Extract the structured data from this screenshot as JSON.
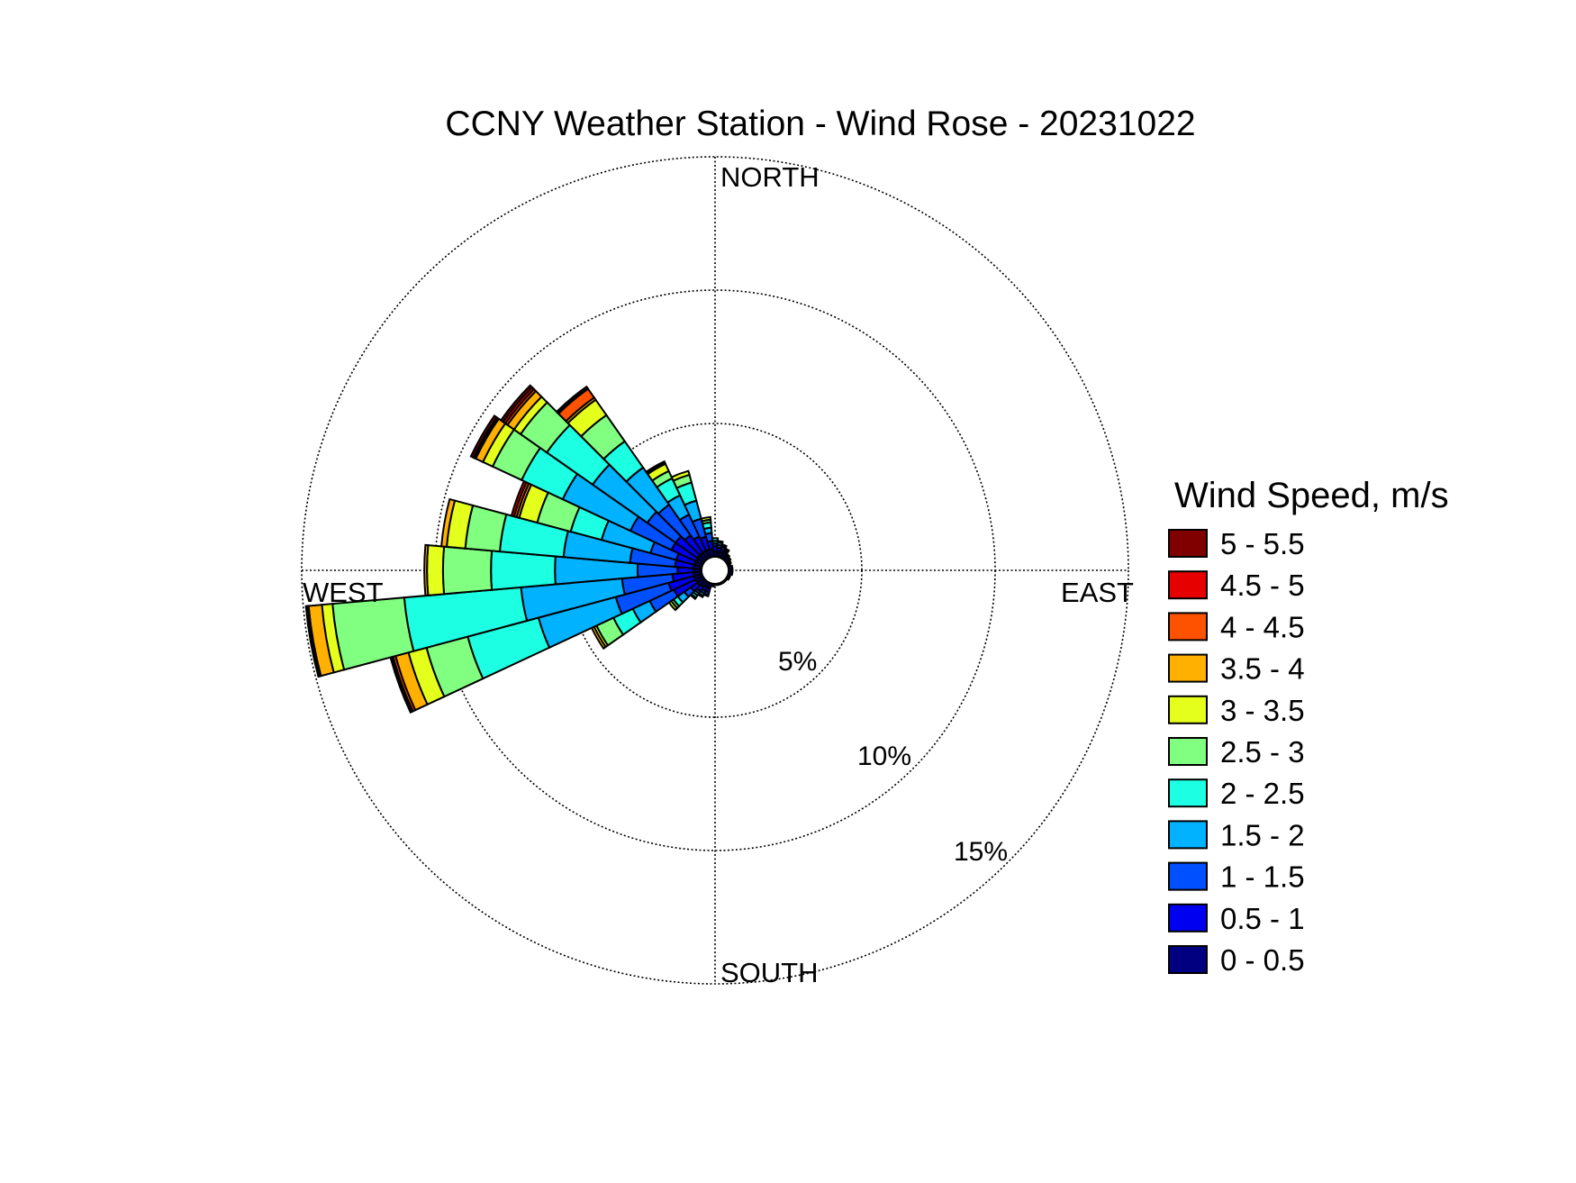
{
  "chart_data": {
    "type": "wind-rose",
    "title": "CCNY Weather Station - Wind Rose - 20231022",
    "direction_labels": {
      "north": "NORTH",
      "south": "SOUTH",
      "east": "EAST",
      "west": "WEST"
    },
    "radial_ticks": [
      {
        "value": 5,
        "label": "5%"
      },
      {
        "value": 10,
        "label": "10%"
      },
      {
        "value": 15,
        "label": "15%"
      }
    ],
    "rmax": 15,
    "sector_width_deg": 10,
    "legend": {
      "title": "Wind Speed, m/s",
      "placement": "right",
      "bins": [
        {
          "label": "5 - 5.5",
          "color": "#800000"
        },
        {
          "label": "4.5 - 5",
          "color": "#e60000"
        },
        {
          "label": "4 - 4.5",
          "color": "#ff5200"
        },
        {
          "label": "3.5 - 4",
          "color": "#ffb000"
        },
        {
          "label": "3 - 3.5",
          "color": "#e4ff1c"
        },
        {
          "label": "2.5 - 3",
          "color": "#80ff80"
        },
        {
          "label": "2 - 2.5",
          "color": "#1cffe2"
        },
        {
          "label": "1.5 - 2",
          "color": "#00b2ff"
        },
        {
          "label": "1 - 1.5",
          "color": "#0050ff"
        },
        {
          "label": "0.5 - 1",
          "color": "#0000f0"
        },
        {
          "label": "0 - 0.5",
          "color": "#000080"
        }
      ]
    },
    "bin_order_low_to_high": [
      "0 - 0.5",
      "0.5 - 1",
      "1 - 1.5",
      "1.5 - 2",
      "2 - 2.5",
      "2.5 - 3",
      "3 - 3.5",
      "3.5 - 4",
      "4 - 4.5",
      "4.5 - 5",
      "5 - 5.5"
    ],
    "cumulative_percent_by_direction": [
      {
        "dir": 0,
        "cum": [
          0.2,
          0.4,
          0.5,
          0.6,
          0.7,
          0.7,
          0.7,
          0.7,
          0.7,
          0.7,
          0.7
        ]
      },
      {
        "dir": 10,
        "cum": [
          0.2,
          0.35,
          0.45,
          0.55,
          0.6,
          0.6,
          0.6,
          0.6,
          0.6,
          0.6,
          0.6
        ]
      },
      {
        "dir": 20,
        "cum": [
          0.2,
          0.3,
          0.4,
          0.45,
          0.5,
          0.5,
          0.5,
          0.5,
          0.5,
          0.5,
          0.5
        ]
      },
      {
        "dir": 30,
        "cum": [
          0.15,
          0.25,
          0.3,
          0.35,
          0.4,
          0.4,
          0.4,
          0.4,
          0.4,
          0.4,
          0.4
        ]
      },
      {
        "dir": 40,
        "cum": [
          0.15,
          0.2,
          0.25,
          0.25,
          0.25,
          0.25,
          0.25,
          0.25,
          0.25,
          0.25,
          0.25
        ]
      },
      {
        "dir": 50,
        "cum": [
          0.15,
          0.2,
          0.2,
          0.2,
          0.2,
          0.2,
          0.2,
          0.2,
          0.2,
          0.2,
          0.2
        ]
      },
      {
        "dir": 60,
        "cum": [
          0.1,
          0.15,
          0.15,
          0.15,
          0.15,
          0.15,
          0.15,
          0.15,
          0.15,
          0.15,
          0.15
        ]
      },
      {
        "dir": 70,
        "cum": [
          0.1,
          0.1,
          0.1,
          0.1,
          0.1,
          0.1,
          0.1,
          0.1,
          0.1,
          0.1,
          0.1
        ]
      },
      {
        "dir": 80,
        "cum": [
          0.15,
          0.15,
          0.15,
          0.15,
          0.15,
          0.15,
          0.15,
          0.15,
          0.15,
          0.15,
          0.15
        ]
      },
      {
        "dir": 90,
        "cum": [
          0.15,
          0.15,
          0.15,
          0.15,
          0.15,
          0.15,
          0.15,
          0.15,
          0.15,
          0.15,
          0.15
        ]
      },
      {
        "dir": 100,
        "cum": [
          0.15,
          0.15,
          0.15,
          0.15,
          0.15,
          0.15,
          0.15,
          0.15,
          0.15,
          0.15,
          0.15
        ]
      },
      {
        "dir": 110,
        "cum": [
          0.1,
          0.1,
          0.1,
          0.1,
          0.1,
          0.1,
          0.1,
          0.1,
          0.1,
          0.1,
          0.1
        ]
      },
      {
        "dir": 120,
        "cum": [
          0.1,
          0.1,
          0.1,
          0.1,
          0.1,
          0.1,
          0.1,
          0.1,
          0.1,
          0.1,
          0.1
        ]
      },
      {
        "dir": 130,
        "cum": [
          0.05,
          0.05,
          0.05,
          0.05,
          0.05,
          0.05,
          0.05,
          0.05,
          0.05,
          0.05,
          0.05
        ]
      },
      {
        "dir": 140,
        "cum": [
          0.05,
          0.05,
          0.05,
          0.05,
          0.05,
          0.05,
          0.05,
          0.05,
          0.05,
          0.05,
          0.05
        ]
      },
      {
        "dir": 150,
        "cum": [
          0.05,
          0.05,
          0.05,
          0.05,
          0.05,
          0.05,
          0.05,
          0.05,
          0.05,
          0.05,
          0.05
        ]
      },
      {
        "dir": 160,
        "cum": [
          0.05,
          0.05,
          0.05,
          0.05,
          0.05,
          0.05,
          0.05,
          0.05,
          0.05,
          0.05,
          0.05
        ]
      },
      {
        "dir": 170,
        "cum": [
          0.05,
          0.05,
          0.05,
          0.05,
          0.05,
          0.05,
          0.05,
          0.05,
          0.05,
          0.05,
          0.05
        ]
      },
      {
        "dir": 180,
        "cum": [
          0.05,
          0.05,
          0.05,
          0.05,
          0.05,
          0.05,
          0.05,
          0.05,
          0.05,
          0.05,
          0.05
        ]
      },
      {
        "dir": 190,
        "cum": [
          0.1,
          0.1,
          0.1,
          0.1,
          0.1,
          0.1,
          0.1,
          0.1,
          0.1,
          0.1,
          0.1
        ]
      },
      {
        "dir": 200,
        "cum": [
          0.2,
          0.35,
          0.45,
          0.5,
          0.5,
          0.5,
          0.5,
          0.5,
          0.5,
          0.5,
          0.5
        ]
      },
      {
        "dir": 210,
        "cum": [
          0.2,
          0.35,
          0.45,
          0.55,
          0.6,
          0.6,
          0.6,
          0.6,
          0.6,
          0.6,
          0.6
        ]
      },
      {
        "dir": 220,
        "cum": [
          0.25,
          0.45,
          0.55,
          0.65,
          0.75,
          0.8,
          0.8,
          0.8,
          0.8,
          0.8,
          0.8
        ]
      },
      {
        "dir": 230,
        "cum": [
          0.3,
          0.6,
          0.9,
          1.2,
          1.4,
          1.5,
          1.6,
          1.6,
          1.6,
          1.6,
          1.6
        ]
      },
      {
        "dir": 240,
        "cum": [
          0.3,
          1.2,
          2.2,
          2.9,
          3.7,
          4.4,
          4.5,
          4.6,
          4.6,
          4.6,
          4.6
        ]
      },
      {
        "dir": 250,
        "cum": [
          0.3,
          1.3,
          3.35,
          6.35,
          9.1,
          10.7,
          11.4,
          11.9,
          12.0,
          12.05,
          12.1
        ]
      },
      {
        "dir": 260,
        "cum": [
          0.3,
          1.1,
          3.0,
          6.8,
          11.2,
          13.9,
          14.3,
          14.8,
          14.85,
          14.9,
          14.9
        ]
      },
      {
        "dir": 270,
        "cum": [
          0.3,
          0.9,
          2.4,
          5.5,
          7.9,
          9.7,
          10.3,
          10.4,
          10.4,
          10.4,
          10.4
        ]
      },
      {
        "dir": 280,
        "cum": [
          0.3,
          1.0,
          2.7,
          5.2,
          7.6,
          8.9,
          9.6,
          9.8,
          9.8,
          9.8,
          9.8
        ]
      },
      {
        "dir": 290,
        "cum": [
          0.3,
          1.0,
          2.0,
          3.9,
          5.1,
          6.4,
          7.1,
          7.2,
          7.3,
          7.4,
          7.4
        ]
      },
      {
        "dir": 300,
        "cum": [
          0.3,
          1.3,
          3.0,
          5.8,
          7.5,
          8.7,
          9.1,
          9.4,
          9.45,
          9.5,
          9.6
        ]
      },
      {
        "dir": 310,
        "cum": [
          0.3,
          1.3,
          2.6,
          5.1,
          7.2,
          8.4,
          8.7,
          9.0,
          9.1,
          9.2,
          9.3
        ]
      },
      {
        "dir": 320,
        "cum": [
          0.3,
          1.1,
          2.5,
          4.2,
          5.4,
          6.6,
          7.3,
          7.4,
          7.8,
          7.85,
          7.9
        ]
      },
      {
        "dir": 330,
        "cum": [
          0.3,
          0.9,
          1.8,
          2.6,
          3.3,
          3.6,
          3.9,
          3.95,
          4.0,
          4.0,
          4.0
        ]
      },
      {
        "dir": 340,
        "cum": [
          0.3,
          0.8,
          1.5,
          2.2,
          2.9,
          3.2,
          3.35,
          3.35,
          3.35,
          3.35,
          3.35
        ]
      },
      {
        "dir": 350,
        "cum": [
          0.3,
          0.6,
          0.9,
          1.1,
          1.3,
          1.4,
          1.5,
          1.5,
          1.5,
          1.5,
          1.5
        ]
      }
    ]
  }
}
